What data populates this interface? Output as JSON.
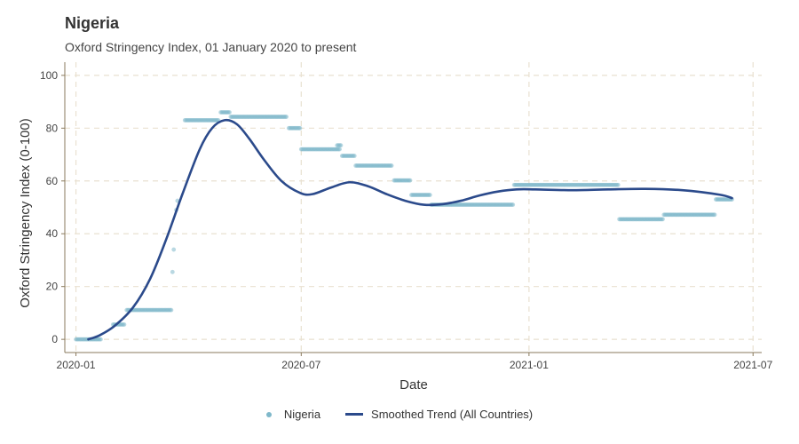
{
  "title": "Nigeria",
  "subtitle": "Oxford Stringency Index, 01 January 2020 to present",
  "colors": {
    "points": "#7fb8ca",
    "trend": "#2b4a8b",
    "grid": "#e9e1d1",
    "axis": "#8a7a5c"
  },
  "legend": {
    "points_label": "Nigeria",
    "trend_label": "Smoothed Trend (All Countries)"
  },
  "chart_data": {
    "type": "scatter",
    "xlabel": "Date",
    "ylabel": "Oxford Stringency Index (0-100)",
    "xlim": [
      "2019-12-23",
      "2021-07-08"
    ],
    "ylim": [
      -5,
      105
    ],
    "x_ticks": [
      "2020-01-01",
      "2020-07-01",
      "2021-01-01",
      "2021-07-01"
    ],
    "x_tick_labels": [
      "2020-01",
      "2020-07",
      "2021-01",
      "2021-07"
    ],
    "y_ticks": [
      0,
      20,
      40,
      60,
      80,
      100
    ],
    "y_tick_labels": [
      "0",
      "20",
      "40",
      "60",
      "80",
      "100"
    ],
    "grid": true,
    "legend_position": "bottom",
    "series": [
      {
        "name": "Nigeria",
        "kind": "points",
        "segments": [
          {
            "start": "2020-01-01",
            "end": "2020-01-21",
            "value": 0
          },
          {
            "start": "2020-01-31",
            "end": "2020-02-09",
            "value": 5.6
          },
          {
            "start": "2020-02-11",
            "end": "2020-03-18",
            "value": 11.1
          },
          {
            "start": "2020-03-19",
            "end": "2020-03-19",
            "value": 25.5
          },
          {
            "start": "2020-03-20",
            "end": "2020-03-20",
            "value": 34
          },
          {
            "start": "2020-03-22",
            "end": "2020-03-22",
            "value": 49
          },
          {
            "start": "2020-03-23",
            "end": "2020-03-23",
            "value": 52.5
          },
          {
            "start": "2020-03-29",
            "end": "2020-04-25",
            "value": 83
          },
          {
            "start": "2020-04-27",
            "end": "2020-05-04",
            "value": 86
          },
          {
            "start": "2020-05-05",
            "end": "2020-06-19",
            "value": 84.3
          },
          {
            "start": "2020-06-21",
            "end": "2020-06-30",
            "value": 80
          },
          {
            "start": "2020-07-01",
            "end": "2020-08-01",
            "value": 72
          },
          {
            "start": "2020-07-30",
            "end": "2020-08-02",
            "value": 73.5
          },
          {
            "start": "2020-08-03",
            "end": "2020-08-13",
            "value": 69.5
          },
          {
            "start": "2020-08-14",
            "end": "2020-09-12",
            "value": 65.8
          },
          {
            "start": "2020-09-14",
            "end": "2020-09-27",
            "value": 60.2
          },
          {
            "start": "2020-09-28",
            "end": "2020-10-13",
            "value": 54.7
          },
          {
            "start": "2020-10-14",
            "end": "2020-12-19",
            "value": 51
          },
          {
            "start": "2020-12-20",
            "end": "2021-03-14",
            "value": 58.5
          },
          {
            "start": "2021-03-15",
            "end": "2021-04-19",
            "value": 45.5
          },
          {
            "start": "2021-04-20",
            "end": "2021-05-31",
            "value": 47.2
          },
          {
            "start": "2021-06-01",
            "end": "2021-06-14",
            "value": 53
          }
        ]
      },
      {
        "name": "Smoothed Trend (All Countries)",
        "kind": "line",
        "x": [
          "2020-01-11",
          "2020-01-20",
          "2020-02-01",
          "2020-02-16",
          "2020-03-01",
          "2020-03-14",
          "2020-03-27",
          "2020-04-10",
          "2020-04-20",
          "2020-04-30",
          "2020-05-10",
          "2020-05-20",
          "2020-06-01",
          "2020-06-15",
          "2020-06-30",
          "2020-07-10",
          "2020-07-25",
          "2020-08-09",
          "2020-08-24",
          "2020-09-08",
          "2020-09-23",
          "2020-10-08",
          "2020-10-23",
          "2020-11-07",
          "2020-11-22",
          "2020-12-07",
          "2020-12-22",
          "2021-01-06",
          "2021-02-05",
          "2021-03-06",
          "2021-04-05",
          "2021-05-05",
          "2021-06-04",
          "2021-06-14"
        ],
        "y": [
          0,
          1.5,
          5,
          12,
          23,
          38,
          55,
          72,
          80,
          83,
          81.5,
          76,
          68,
          60,
          55.5,
          55,
          57.5,
          59.5,
          58,
          55,
          52.5,
          51,
          51.2,
          52.5,
          54.5,
          56,
          56.8,
          56.8,
          56.5,
          56.8,
          57,
          56.5,
          54.8,
          53.5
        ]
      }
    ]
  }
}
